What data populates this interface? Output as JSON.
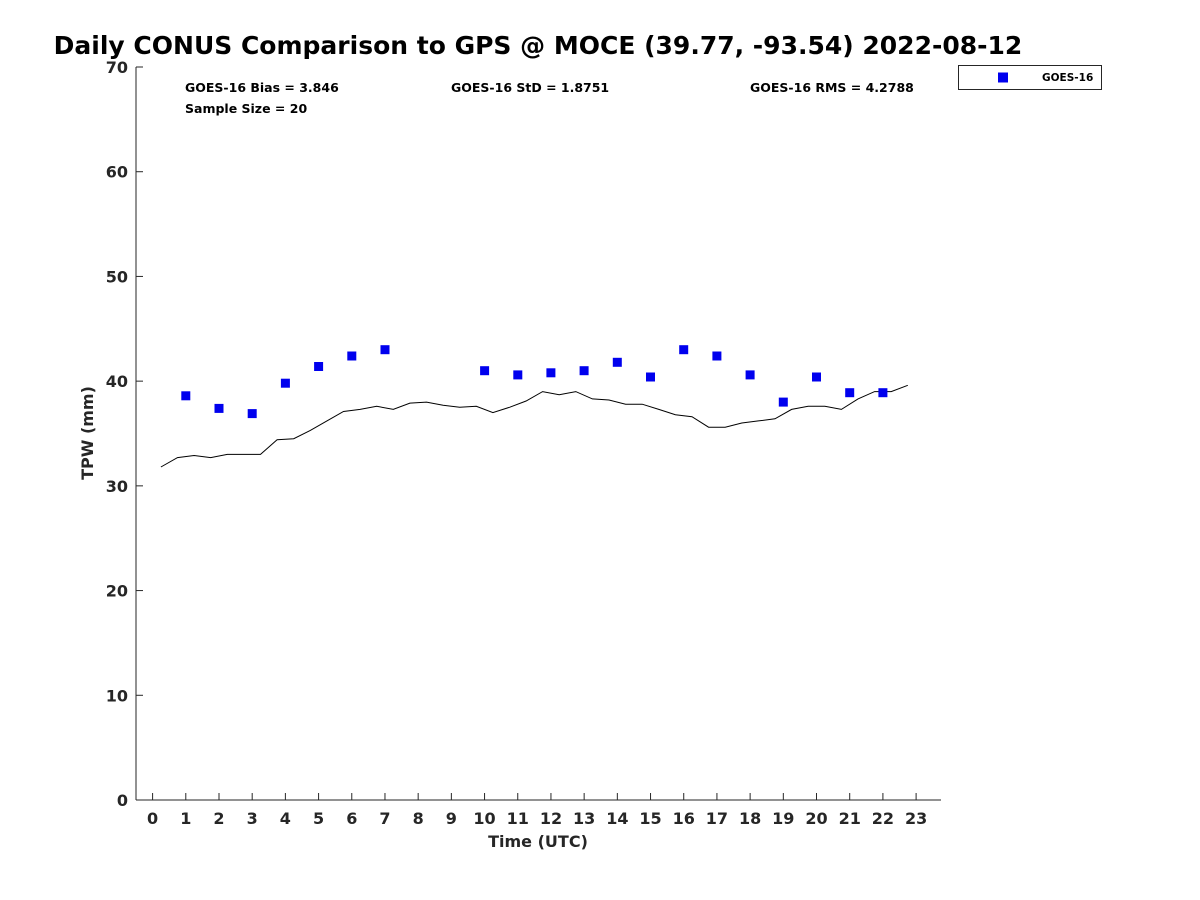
{
  "chart_data": {
    "type": "scatter",
    "title": "Daily CONUS Comparison to GPS @ MOCE (39.77, -93.54) 2022-08-12",
    "xlabel": "Time (UTC)",
    "ylabel": "TPW (mm)",
    "xlim": [
      -0.5,
      23.75
    ],
    "ylim": [
      0,
      70
    ],
    "x_ticks": [
      0,
      1,
      2,
      3,
      4,
      5,
      6,
      7,
      8,
      9,
      10,
      11,
      12,
      13,
      14,
      15,
      16,
      17,
      18,
      19,
      20,
      21,
      22,
      23
    ],
    "y_ticks": [
      0,
      10,
      20,
      30,
      40,
      50,
      60,
      70
    ],
    "grid": false,
    "legend": {
      "location": "top-right outside",
      "entries": [
        "GOES-16"
      ]
    },
    "stats": {
      "bias": "GOES-16 Bias = 3.846",
      "std": "GOES-16 StD = 1.8751",
      "rms": "GOES-16 RMS = 4.2788",
      "sample": "Sample Size = 20"
    },
    "series": [
      {
        "name": "GOES-16",
        "kind": "markers",
        "marker": "square",
        "color": "#0000ee",
        "x": [
          1,
          2,
          3,
          4,
          5,
          6,
          7,
          10,
          11,
          12,
          13,
          14,
          15,
          16,
          17,
          18,
          19,
          20,
          21,
          22
        ],
        "y": [
          38.6,
          37.4,
          36.9,
          39.8,
          41.4,
          42.4,
          43.0,
          41.0,
          40.6,
          40.8,
          41.0,
          41.8,
          40.4,
          43.0,
          42.4,
          40.6,
          38.0,
          40.4,
          38.9,
          38.9
        ]
      },
      {
        "kind": "line",
        "color": "#000000",
        "x": [
          0.25,
          0.75,
          1.25,
          1.75,
          2.25,
          2.75,
          3.25,
          3.75,
          4.25,
          4.75,
          5.25,
          5.75,
          6.25,
          6.75,
          7.25,
          7.75,
          8.25,
          8.75,
          9.25,
          9.75,
          10.25,
          10.75,
          11.25,
          11.75,
          12.25,
          12.75,
          13.25,
          13.75,
          14.25,
          14.75,
          15.25,
          15.75,
          16.25,
          16.75,
          17.25,
          17.75,
          18.25,
          18.75,
          19.25,
          19.75,
          20.25,
          20.75,
          21.25,
          21.75,
          22.25,
          22.75
        ],
        "y": [
          31.8,
          32.7,
          32.9,
          32.7,
          33.0,
          33.0,
          33.0,
          34.4,
          34.5,
          35.3,
          36.2,
          37.1,
          37.3,
          37.6,
          37.3,
          37.9,
          38.0,
          37.7,
          37.5,
          37.6,
          37.0,
          37.5,
          38.1,
          39.0,
          38.7,
          39.0,
          38.3,
          38.2,
          37.8,
          37.8,
          37.3,
          36.8,
          36.6,
          35.6,
          35.6,
          36.0,
          36.2,
          36.4,
          37.3,
          37.6,
          37.6,
          37.3,
          38.3,
          39.0,
          39.0,
          39.6
        ]
      }
    ]
  }
}
